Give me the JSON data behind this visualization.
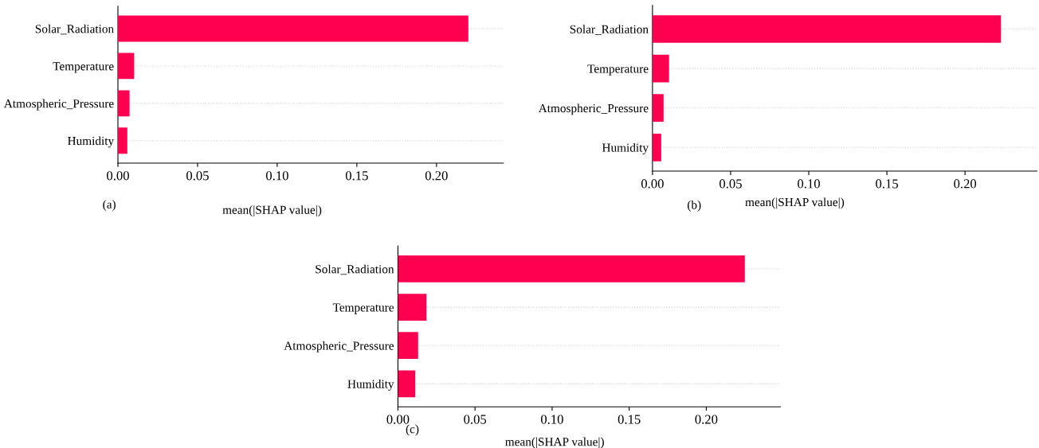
{
  "chart_data": [
    {
      "type": "bar",
      "orientation": "horizontal",
      "categories": [
        "Solar_Radiation",
        "Temperature",
        "Atmospheric_Pressure",
        "Humidity"
      ],
      "values": [
        0.22,
        0.0102,
        0.0073,
        0.0059
      ],
      "color": "#ff0051",
      "xlabel": "mean(|SHAP value|)",
      "xlim": [
        0,
        0.242
      ],
      "xticks": [
        {
          "value": 0,
          "label": "0.00"
        },
        {
          "value": 0.05,
          "label": "0.05"
        },
        {
          "value": 0.1,
          "label": "0.10"
        },
        {
          "value": 0.15,
          "label": "0.15"
        },
        {
          "value": 0.2,
          "label": "0.20"
        }
      ],
      "grid": "y",
      "annotations": [
        "(a)"
      ]
    },
    {
      "type": "bar",
      "orientation": "horizontal",
      "categories": [
        "Solar_Radiation",
        "Temperature",
        "Atmospheric_Pressure",
        "Humidity"
      ],
      "values": [
        0.223,
        0.0106,
        0.0071,
        0.0056
      ],
      "color": "#ff0051",
      "xlabel": "mean(|SHAP value|)",
      "xlim": [
        0,
        0.246
      ],
      "xticks": [
        {
          "value": 0,
          "label": "0.00"
        },
        {
          "value": 0.05,
          "label": "0.05"
        },
        {
          "value": 0.1,
          "label": "0.10"
        },
        {
          "value": 0.15,
          "label": "0.15"
        },
        {
          "value": 0.2,
          "label": "0.20"
        }
      ],
      "grid": "y",
      "annotations": [
        "(b)"
      ]
    },
    {
      "type": "bar",
      "orientation": "horizontal",
      "categories": [
        "Solar_Radiation",
        "Temperature",
        "Atmospheric_Pressure",
        "Humidity"
      ],
      "values": [
        0.225,
        0.0185,
        0.0131,
        0.0112
      ],
      "color": "#ff0051",
      "xlabel": "mean(|SHAP value|)",
      "xlim": [
        0,
        0.248
      ],
      "xticks": [
        {
          "value": 0,
          "label": "0.00"
        },
        {
          "value": 0.05,
          "label": "0.05"
        },
        {
          "value": 0.1,
          "label": "0.10"
        },
        {
          "value": 0.15,
          "label": "0.15"
        },
        {
          "value": 0.2,
          "label": "0.20"
        }
      ],
      "grid": "y",
      "annotations": [
        "(c)"
      ]
    }
  ]
}
